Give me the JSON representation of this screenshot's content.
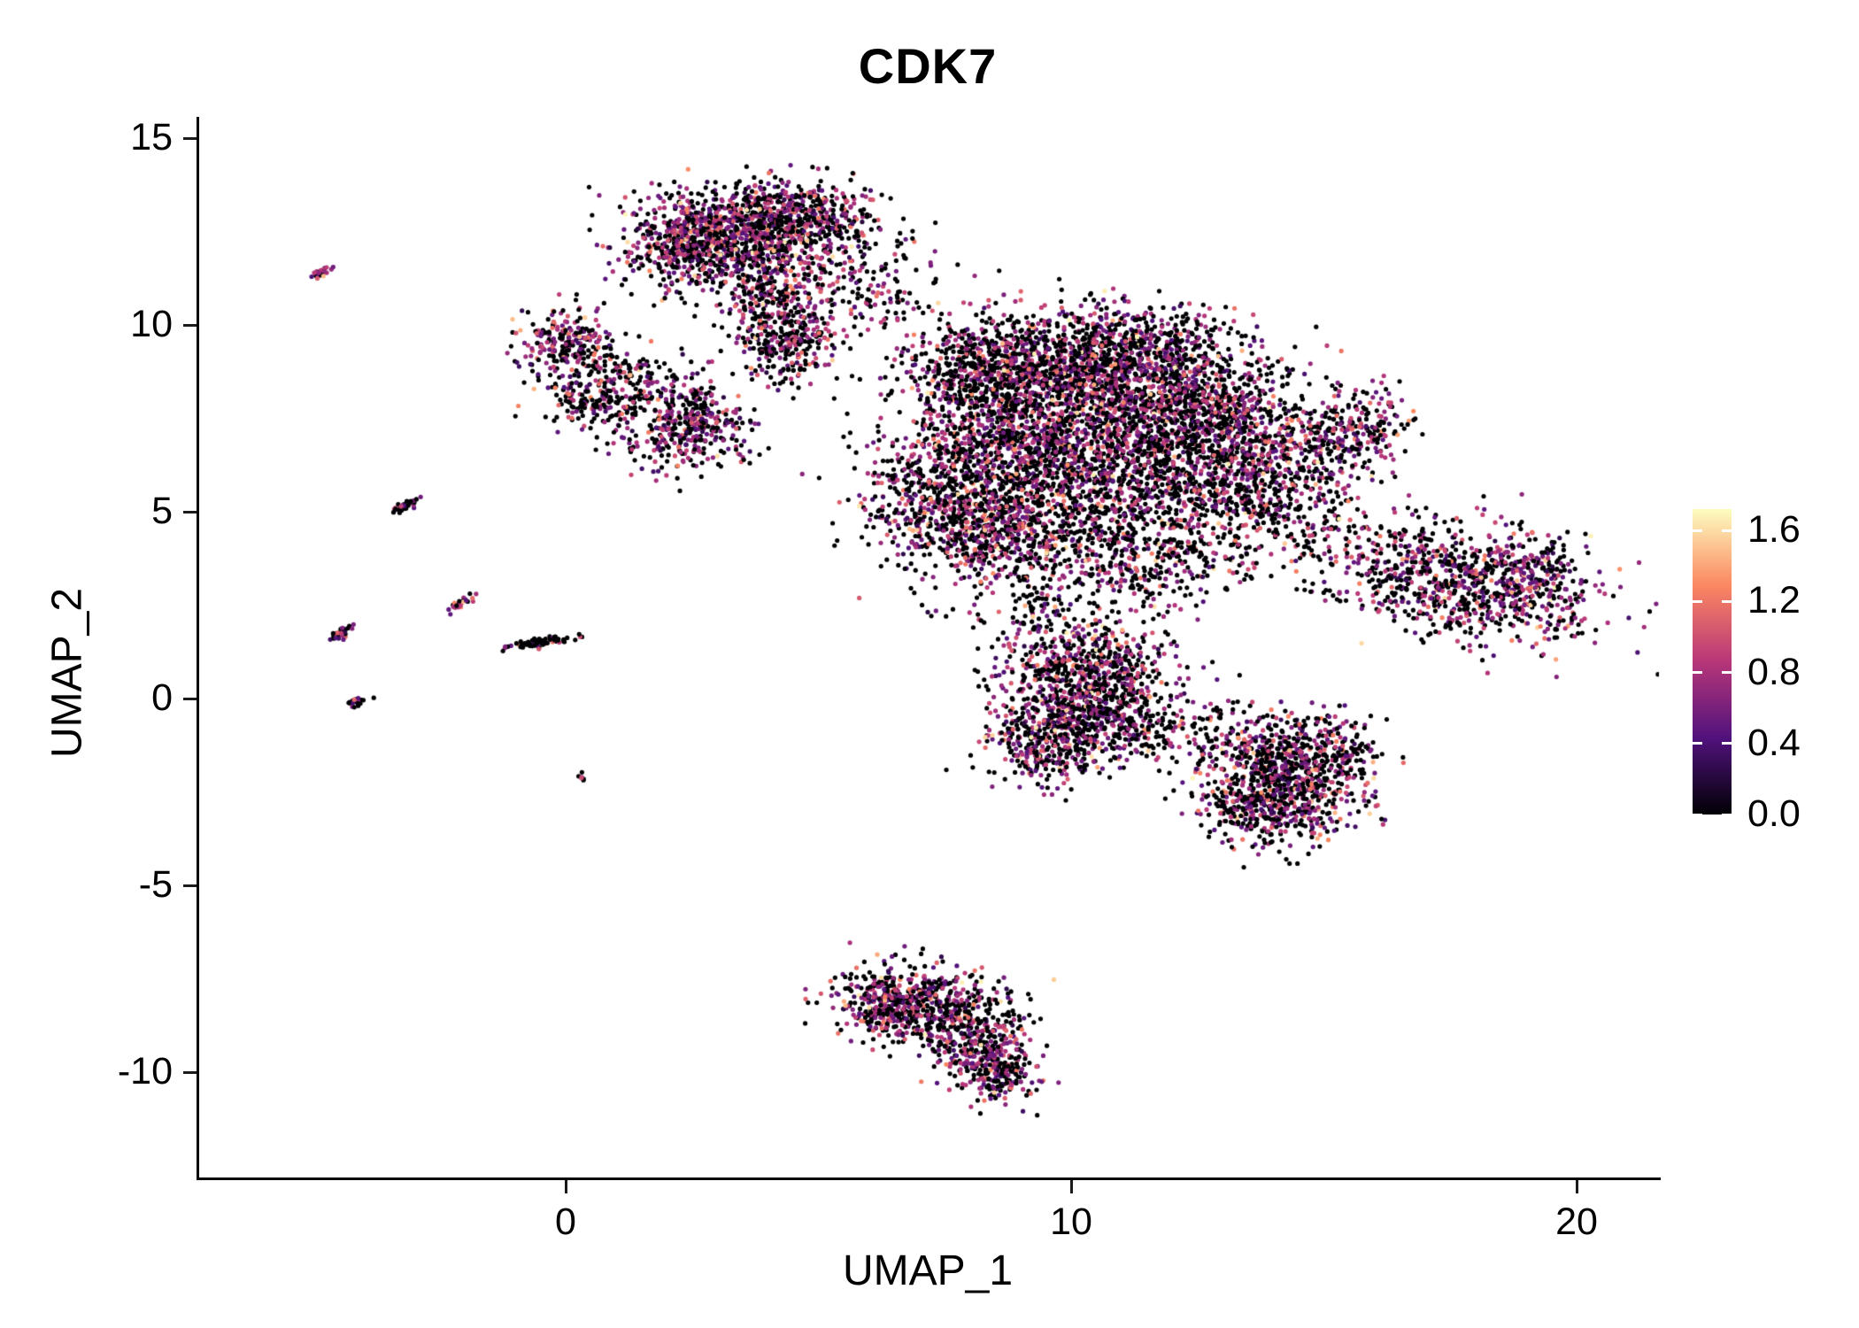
{
  "chart_data": {
    "type": "scatter",
    "title": "CDK7",
    "xlabel": "UMAP_1",
    "ylabel": "UMAP_2",
    "xlim": [
      -6.5,
      21.5
    ],
    "ylim": [
      -12.8,
      15.3
    ],
    "x_ticks": [
      0,
      10,
      20
    ],
    "y_ticks": [
      15,
      10,
      5,
      0,
      -5,
      -10
    ],
    "grid": false,
    "legend": {
      "position": "right",
      "ticks": [
        "1.6",
        "1.2",
        "0.8",
        "0.4",
        "0.0"
      ],
      "tick_values": [
        1.6,
        1.2,
        0.8,
        0.4,
        0.0
      ],
      "vmin": 0.0,
      "vmax": 1.72
    },
    "colormap": {
      "name": "magma",
      "stops": [
        {
          "t": 0.0,
          "color": "#000004"
        },
        {
          "t": 0.25,
          "color": "#51127c"
        },
        {
          "t": 0.5,
          "color": "#b73679"
        },
        {
          "t": 0.75,
          "color": "#fb8761"
        },
        {
          "t": 1.0,
          "color": "#fcfdbf"
        }
      ]
    },
    "point_radius_px": 2.6,
    "seed": 42,
    "expression": {
      "zero_fraction_default": 0.52,
      "nonzero_range": [
        0.2,
        1.7
      ]
    },
    "clusters": [
      {
        "cx": 3.2,
        "cy": 12.4,
        "sx": 1.1,
        "sy": 0.65,
        "rot": 0,
        "n": 850,
        "zf": 0.45
      },
      {
        "cx": 4.6,
        "cy": 12.9,
        "sx": 0.75,
        "sy": 0.45,
        "rot": 0,
        "n": 380,
        "zf": 0.5
      },
      {
        "cx": 2.5,
        "cy": 11.9,
        "sx": 0.6,
        "sy": 0.5,
        "rot": 0,
        "n": 260,
        "zf": 0.45
      },
      {
        "cx": 4.1,
        "cy": 10.7,
        "sx": 0.5,
        "sy": 0.75,
        "rot": 0,
        "n": 300,
        "zf": 0.5
      },
      {
        "cx": 4.4,
        "cy": 9.4,
        "sx": 0.45,
        "sy": 0.55,
        "rot": 0,
        "n": 210,
        "zf": 0.5
      },
      {
        "cx": 5.6,
        "cy": 11.6,
        "sx": 0.9,
        "sy": 0.8,
        "rot": 0,
        "n": 130,
        "zf": 0.6
      },
      {
        "cx": 6.4,
        "cy": 10.6,
        "sx": 0.8,
        "sy": 0.6,
        "rot": 0,
        "n": 70,
        "zf": 0.65
      },
      {
        "cx": 0.0,
        "cy": 9.5,
        "sx": 0.5,
        "sy": 0.45,
        "rot": 0,
        "n": 240,
        "zf": 0.5
      },
      {
        "cx": 0.55,
        "cy": 8.1,
        "sx": 0.5,
        "sy": 0.5,
        "rot": 0,
        "n": 190,
        "zf": 0.55
      },
      {
        "cx": 1.3,
        "cy": 8.8,
        "sx": 0.5,
        "sy": 0.4,
        "rot": 0,
        "n": 60,
        "zf": 0.6
      },
      {
        "cx": 2.4,
        "cy": 7.4,
        "sx": 0.65,
        "sy": 0.65,
        "rot": 0,
        "n": 430,
        "zf": 0.45
      },
      {
        "cx": 8.6,
        "cy": 8.8,
        "sx": 1.0,
        "sy": 0.75,
        "rot": 0,
        "n": 800,
        "zf": 0.55
      },
      {
        "cx": 10.4,
        "cy": 8.6,
        "sx": 1.1,
        "sy": 0.85,
        "rot": 0,
        "n": 850,
        "zf": 0.55
      },
      {
        "cx": 12.2,
        "cy": 8.1,
        "sx": 0.95,
        "sy": 0.95,
        "rot": 0,
        "n": 650,
        "zf": 0.55
      },
      {
        "cx": 11.4,
        "cy": 9.6,
        "sx": 0.8,
        "sy": 0.45,
        "rot": 0,
        "n": 240,
        "zf": 0.55
      },
      {
        "cx": 9.0,
        "cy": 6.9,
        "sx": 1.1,
        "sy": 0.85,
        "rot": 0,
        "n": 750,
        "zf": 0.55
      },
      {
        "cx": 7.6,
        "cy": 5.4,
        "sx": 0.85,
        "sy": 0.95,
        "rot": 0,
        "n": 650,
        "zf": 0.5
      },
      {
        "cx": 8.8,
        "cy": 4.5,
        "sx": 0.85,
        "sy": 0.75,
        "rot": 0,
        "n": 480,
        "zf": 0.55
      },
      {
        "cx": 10.4,
        "cy": 5.6,
        "sx": 1.0,
        "sy": 1.1,
        "rot": 0,
        "n": 480,
        "zf": 0.6
      },
      {
        "cx": 12.0,
        "cy": 6.4,
        "sx": 0.9,
        "sy": 0.85,
        "rot": 0,
        "n": 430,
        "zf": 0.55
      },
      {
        "cx": 13.3,
        "cy": 7.3,
        "sx": 0.7,
        "sy": 0.85,
        "rot": 0,
        "n": 300,
        "zf": 0.55
      },
      {
        "cx": 11.4,
        "cy": 3.7,
        "sx": 0.9,
        "sy": 0.7,
        "rot": 0,
        "n": 280,
        "zf": 0.6
      },
      {
        "cx": 12.8,
        "cy": 4.9,
        "sx": 0.8,
        "sy": 0.8,
        "rot": 0,
        "n": 240,
        "zf": 0.6
      },
      {
        "cx": 13.9,
        "cy": 5.9,
        "sx": 0.6,
        "sy": 0.65,
        "rot": 0,
        "n": 190,
        "zf": 0.55
      },
      {
        "cx": 9.4,
        "cy": 2.3,
        "sx": 0.8,
        "sy": 0.55,
        "rot": 0,
        "n": 110,
        "zf": 0.6
      },
      {
        "cx": 14.6,
        "cy": 4.8,
        "sx": 0.8,
        "sy": 0.6,
        "rot": 0,
        "n": 110,
        "zf": 0.65
      },
      {
        "cx": 15.1,
        "cy": 6.9,
        "sx": 0.6,
        "sy": 0.6,
        "rot": 0,
        "n": 240,
        "zf": 0.5
      },
      {
        "cx": 15.9,
        "cy": 7.3,
        "sx": 0.4,
        "sy": 0.5,
        "rot": 0,
        "n": 120,
        "zf": 0.5
      },
      {
        "cx": 17.7,
        "cy": 3.1,
        "sx": 1.5,
        "sy": 0.75,
        "rot": -18,
        "n": 850,
        "zf": 0.5
      },
      {
        "cx": 19.1,
        "cy": 3.4,
        "sx": 0.5,
        "sy": 0.6,
        "rot": 0,
        "n": 160,
        "zf": 0.45
      },
      {
        "cx": 9.8,
        "cy": 0.4,
        "sx": 0.7,
        "sy": 0.85,
        "rot": 0,
        "n": 430,
        "zf": 0.5
      },
      {
        "cx": 10.8,
        "cy": 0.8,
        "sx": 0.6,
        "sy": 0.65,
        "rot": 0,
        "n": 280,
        "zf": 0.55
      },
      {
        "cx": 9.5,
        "cy": -1.2,
        "sx": 0.6,
        "sy": 0.6,
        "rot": 0,
        "n": 330,
        "zf": 0.5
      },
      {
        "cx": 10.6,
        "cy": -0.5,
        "sx": 0.7,
        "sy": 0.6,
        "rot": 0,
        "n": 230,
        "zf": 0.55
      },
      {
        "cx": 11.8,
        "cy": -0.9,
        "sx": 0.7,
        "sy": 0.5,
        "rot": 0,
        "n": 110,
        "zf": 0.6
      },
      {
        "cx": 13.8,
        "cy": -1.5,
        "sx": 0.8,
        "sy": 0.6,
        "rot": 0,
        "n": 380,
        "zf": 0.5
      },
      {
        "cx": 14.6,
        "cy": -2.3,
        "sx": 0.7,
        "sy": 0.6,
        "rot": 0,
        "n": 330,
        "zf": 0.5
      },
      {
        "cx": 13.5,
        "cy": -2.8,
        "sx": 0.5,
        "sy": 0.5,
        "rot": 0,
        "n": 190,
        "zf": 0.5
      },
      {
        "cx": 15.2,
        "cy": -1.2,
        "sx": 0.5,
        "sy": 0.5,
        "rot": 0,
        "n": 140,
        "zf": 0.55
      },
      {
        "cx": 14.2,
        "cy": -3.3,
        "sx": 0.5,
        "sy": 0.4,
        "rot": 0,
        "n": 110,
        "zf": 0.5
      },
      {
        "cx": 6.8,
        "cy": -7.9,
        "sx": 0.8,
        "sy": 0.45,
        "rot": 0,
        "n": 330,
        "zf": 0.5
      },
      {
        "cx": 7.6,
        "cy": -8.6,
        "sx": 0.7,
        "sy": 0.5,
        "rot": 0,
        "n": 280,
        "zf": 0.55
      },
      {
        "cx": 8.2,
        "cy": -9.4,
        "sx": 0.5,
        "sy": 0.5,
        "rot": 0,
        "n": 230,
        "zf": 0.5
      },
      {
        "cx": 8.6,
        "cy": -10.0,
        "sx": 0.35,
        "sy": 0.4,
        "rot": 0,
        "n": 140,
        "zf": 0.5
      },
      {
        "cx": 6.3,
        "cy": -8.3,
        "sx": 0.4,
        "sy": 0.4,
        "rot": 0,
        "n": 140,
        "zf": 0.5
      },
      {
        "cx": -4.85,
        "cy": 11.4,
        "sx": 0.13,
        "sy": 0.05,
        "rot": 40,
        "n": 25,
        "zf": 0.3
      },
      {
        "cx": -3.2,
        "cy": 5.15,
        "sx": 0.18,
        "sy": 0.06,
        "rot": 40,
        "n": 35,
        "zf": 0.45
      },
      {
        "cx": -4.45,
        "cy": 1.75,
        "sx": 0.16,
        "sy": 0.06,
        "rot": 40,
        "n": 30,
        "zf": 0.4
      },
      {
        "cx": -2.05,
        "cy": 2.55,
        "sx": 0.16,
        "sy": 0.06,
        "rot": 40,
        "n": 30,
        "zf": 0.5
      },
      {
        "cx": -4.15,
        "cy": -0.1,
        "sx": 0.13,
        "sy": 0.05,
        "rot": 35,
        "n": 25,
        "zf": 0.7
      },
      {
        "cx": -0.5,
        "cy": 1.5,
        "sx": 0.35,
        "sy": 0.06,
        "rot": 12,
        "n": 70,
        "zf": 0.8
      },
      {
        "cx": 0.35,
        "cy": -2.1,
        "sx": 0.06,
        "sy": 0.05,
        "rot": 0,
        "n": 6,
        "zf": 0.7
      }
    ]
  },
  "colors": {
    "background": "#ffffff",
    "axis": "#000000",
    "text": "#000000"
  }
}
